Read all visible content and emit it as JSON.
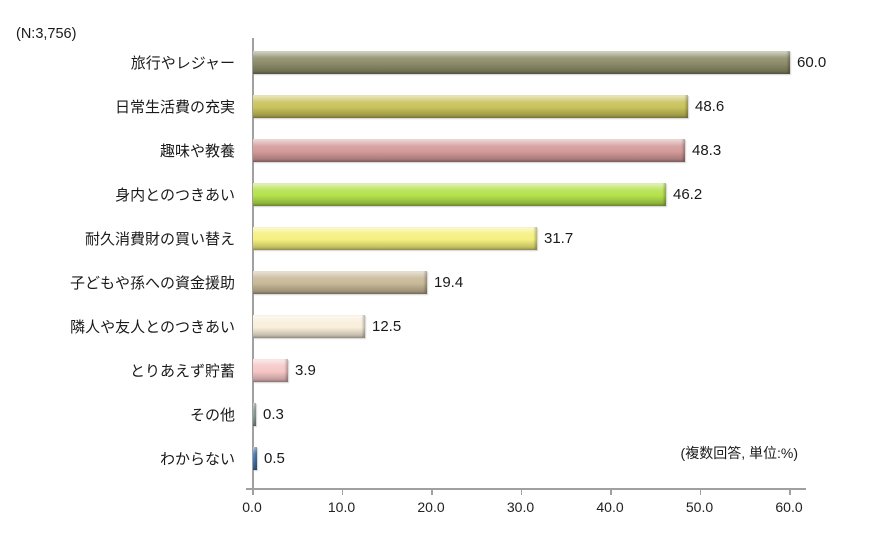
{
  "annotation": {
    "sample_size": "(N:3,756)",
    "note": "(複数回答, 単位:%)"
  },
  "chart_data": {
    "type": "bar",
    "orientation": "horizontal",
    "title": "",
    "xlabel": "",
    "ylabel": "",
    "categories": [
      "旅行やレジャー",
      "日常生活費の充実",
      "趣味や教養",
      "身内とのつきあい",
      "耐久消費財の買い替え",
      "子どもや孫への資金援助",
      "隣人や友人とのつきあい",
      "とりあえず貯蓄",
      "その他",
      "わからない"
    ],
    "values": [
      60.0,
      48.6,
      48.3,
      46.2,
      31.7,
      19.4,
      12.5,
      3.9,
      0.3,
      0.5
    ],
    "value_labels": [
      "60.0",
      "48.6",
      "48.3",
      "46.2",
      "31.7",
      "19.4",
      "12.5",
      "3.9",
      "0.3",
      "0.5"
    ],
    "colors": [
      "#8c8c69",
      "#c9c25c",
      "#d49a9a",
      "#b4e14b",
      "#f5f07d",
      "#c7b897",
      "#f9eeda",
      "#f6c6c6",
      "#9fb3ac",
      "#4a7ebb"
    ],
    "xlim": [
      0,
      60
    ],
    "x_ticks": [
      "0.0",
      "10.0",
      "20.0",
      "30.0",
      "40.0",
      "50.0",
      "60.0"
    ],
    "grid": false,
    "legend": "none"
  }
}
